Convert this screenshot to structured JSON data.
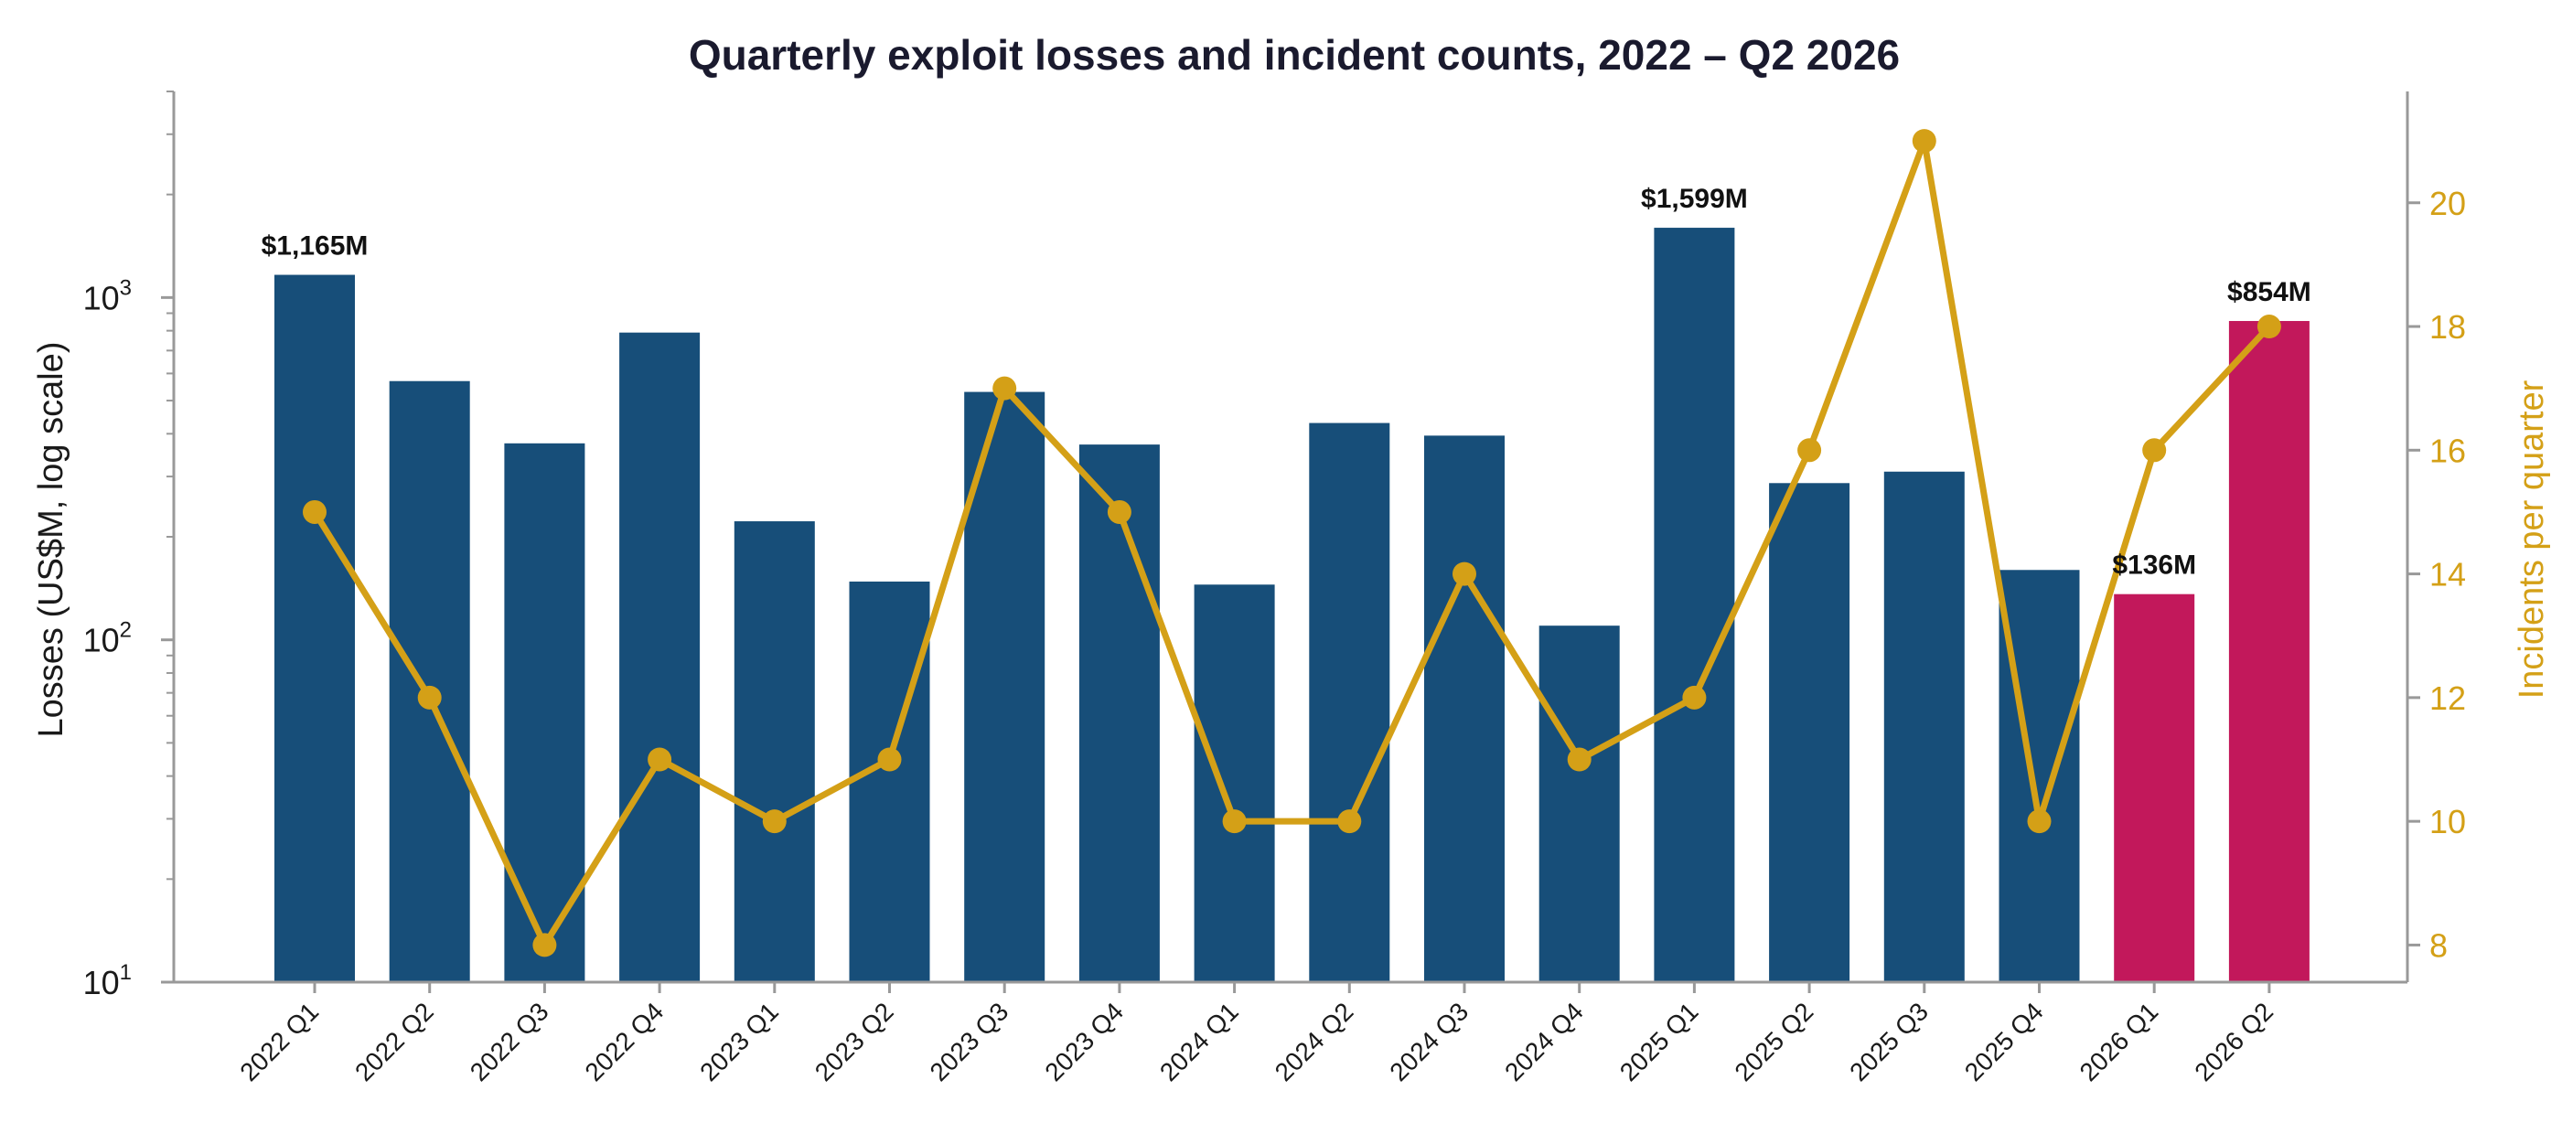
{
  "chart_data": {
    "type": "bar",
    "title": "Quarterly exploit losses and incident counts, 2022 – Q2 2026",
    "categories": [
      "2022 Q1",
      "2022 Q2",
      "2022 Q3",
      "2022 Q4",
      "2023 Q1",
      "2023 Q2",
      "2023 Q3",
      "2023 Q4",
      "2024 Q1",
      "2024 Q2",
      "2024 Q3",
      "2024 Q4",
      "2025 Q1",
      "2025 Q2",
      "2025 Q3",
      "2025 Q4",
      "2026 Q1",
      "2026 Q2"
    ],
    "ylabel": "Losses (US$M, log scale)",
    "y2label": "Incidents per quarter",
    "yscale": "log",
    "ylim": [
      10,
      4000
    ],
    "y2lim": [
      7.4,
      21.8
    ],
    "yticks": [
      {
        "base": "10",
        "exp": "1",
        "value": 10
      },
      {
        "base": "10",
        "exp": "2",
        "value": 100
      },
      {
        "base": "10",
        "exp": "3",
        "value": 1000
      }
    ],
    "y2ticks": [
      "8",
      "10",
      "12",
      "14",
      "16",
      "18",
      "20"
    ],
    "grid": false,
    "series": [
      {
        "values": [
          1165,
          570,
          375,
          790,
          222,
          148,
          530,
          372,
          145,
          430,
          395,
          110,
          1599,
          287,
          310,
          160,
          136,
          854
        ],
        "colors": [
          "#174e79",
          "#174e79",
          "#174e79",
          "#174e79",
          "#174e79",
          "#174e79",
          "#174e79",
          "#174e79",
          "#174e79",
          "#174e79",
          "#174e79",
          "#174e79",
          "#174e79",
          "#174e79",
          "#174e79",
          "#174e79",
          "#c2185b",
          "#c2185b"
        ]
      },
      {
        "values": [
          15,
          12,
          8,
          11,
          10,
          11,
          17,
          15,
          10,
          10,
          14,
          11,
          12,
          16,
          21,
          10,
          16,
          18
        ],
        "color": "#d4a017"
      }
    ],
    "annotations": [
      {
        "index": 0,
        "text": "$1,165M"
      },
      {
        "index": 12,
        "text": "$1,599M"
      },
      {
        "index": 16,
        "text": "$136M"
      },
      {
        "index": 17,
        "text": "$854M"
      }
    ]
  }
}
